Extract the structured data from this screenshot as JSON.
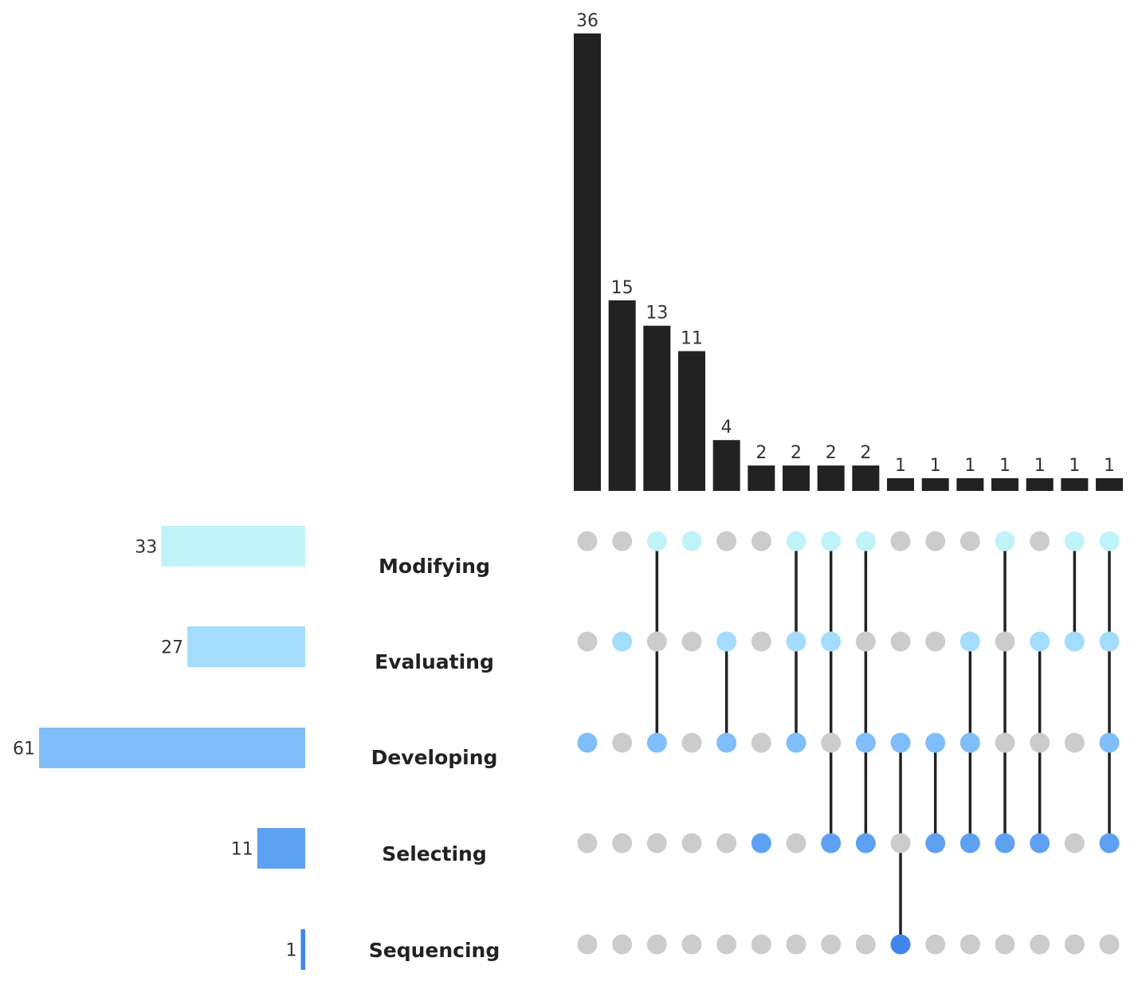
{
  "chart_data": {
    "type": "bar",
    "chart_kind": "upset",
    "sets": [
      {
        "name": "Modifying",
        "size": 33,
        "color": "#bff3f9"
      },
      {
        "name": "Evaluating",
        "size": 27,
        "color": "#a3dcfc"
      },
      {
        "name": "Developing",
        "size": 61,
        "color": "#7fbef8"
      },
      {
        "name": "Selecting",
        "size": 11,
        "color": "#5ea1f3"
      },
      {
        "name": "Sequencing",
        "size": 1,
        "color": "#3f86ee"
      }
    ],
    "intersections": [
      {
        "value": 36,
        "members": [
          "Developing"
        ]
      },
      {
        "value": 15,
        "members": [
          "Evaluating"
        ]
      },
      {
        "value": 13,
        "members": [
          "Modifying",
          "Developing"
        ]
      },
      {
        "value": 11,
        "members": [
          "Modifying"
        ]
      },
      {
        "value": 4,
        "members": [
          "Evaluating",
          "Developing"
        ]
      },
      {
        "value": 2,
        "members": [
          "Selecting"
        ]
      },
      {
        "value": 2,
        "members": [
          "Modifying",
          "Evaluating",
          "Developing"
        ]
      },
      {
        "value": 2,
        "members": [
          "Modifying",
          "Evaluating",
          "Selecting"
        ]
      },
      {
        "value": 2,
        "members": [
          "Modifying",
          "Developing",
          "Selecting"
        ]
      },
      {
        "value": 1,
        "members": [
          "Developing",
          "Sequencing"
        ]
      },
      {
        "value": 1,
        "members": [
          "Developing",
          "Selecting"
        ]
      },
      {
        "value": 1,
        "members": [
          "Evaluating",
          "Developing",
          "Selecting"
        ]
      },
      {
        "value": 1,
        "members": [
          "Modifying",
          "Selecting"
        ]
      },
      {
        "value": 1,
        "members": [
          "Evaluating",
          "Selecting"
        ]
      },
      {
        "value": 1,
        "members": [
          "Modifying",
          "Evaluating"
        ]
      },
      {
        "value": 1,
        "members": [
          "Modifying",
          "Evaluating",
          "Developing",
          "Selecting"
        ]
      }
    ],
    "bar_color": "#222222",
    "inactive_dot_color": "#cccccc",
    "connector_color": "#222222",
    "ylim": [
      0,
      36
    ],
    "set_size_max": 61,
    "grid": false,
    "legend": "none"
  }
}
